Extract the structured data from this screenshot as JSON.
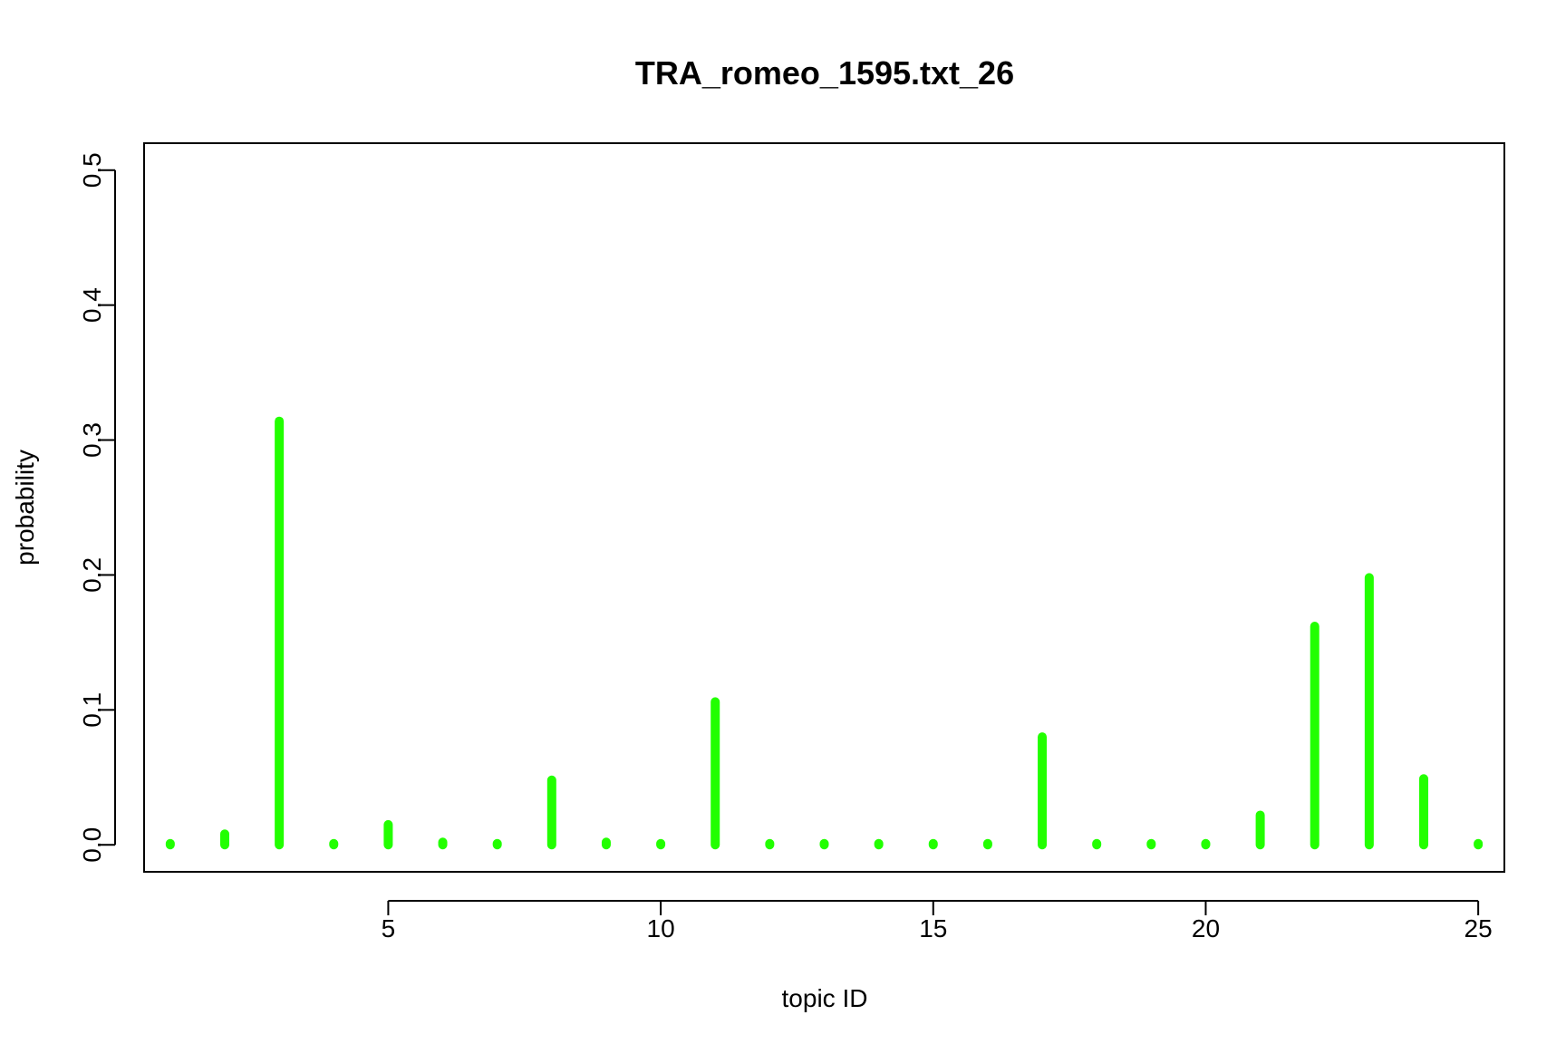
{
  "chart_data": {
    "type": "bar",
    "title": "TRA_romeo_1595.txt_26",
    "xlabel": "topic ID",
    "ylabel": "probability",
    "x": [
      1,
      2,
      3,
      4,
      5,
      6,
      7,
      8,
      9,
      10,
      11,
      12,
      13,
      14,
      15,
      16,
      17,
      18,
      19,
      20,
      21,
      22,
      23,
      24,
      25
    ],
    "values": [
      0.001,
      0.008,
      0.314,
      0.001,
      0.015,
      0.002,
      0.001,
      0.048,
      0.002,
      0.001,
      0.106,
      0.001,
      0.001,
      0.001,
      0.001,
      0.001,
      0.08,
      0.001,
      0.001,
      0.001,
      0.022,
      0.162,
      0.198,
      0.049,
      0.001
    ],
    "xlim": [
      0.52,
      25.48
    ],
    "ylim": [
      -0.02,
      0.52
    ],
    "xticks": [
      5,
      10,
      15,
      20,
      25
    ],
    "xtick_labels": [
      "5",
      "10",
      "15",
      "20",
      "25"
    ],
    "yticks": [
      0,
      0.1,
      0.2,
      0.3,
      0.4,
      0.5
    ],
    "ytick_labels": [
      "0.0",
      "0.1",
      "0.2",
      "0.3",
      "0.4",
      "0.5"
    ],
    "bar_color": "#22ff00",
    "grid": false,
    "legend": "none"
  }
}
